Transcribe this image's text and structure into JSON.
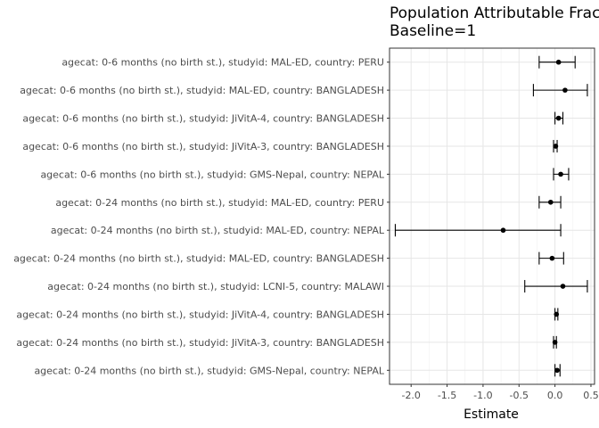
{
  "chart_data": {
    "type": "forest",
    "title": "Population Attributable Fraction",
    "subtitle": "Baseline=1",
    "xlabel": "Estimate",
    "ylabel": "",
    "xlim": [
      -2.3,
      0.55
    ],
    "xticks": [
      -2.0,
      -1.5,
      -1.0,
      -0.5,
      0.0,
      0.5
    ],
    "xtick_labels": [
      "-2.0",
      "-1.5",
      "-1.0",
      "-0.5",
      "0.0",
      "0.5"
    ],
    "grid": true,
    "rows": [
      {
        "label": "agecat: 0-6 months (no birth st.), studyid: MAL-ED, country: PERU",
        "estimate": 0.05,
        "lower": -0.22,
        "upper": 0.28
      },
      {
        "label": "agecat: 0-6 months (no birth st.), studyid: MAL-ED, country: BANGLADESH",
        "estimate": 0.14,
        "lower": -0.3,
        "upper": 0.45
      },
      {
        "label": "agecat: 0-6 months (no birth st.), studyid: JiVitA-4, country: BANGLADESH",
        "estimate": 0.05,
        "lower": 0.0,
        "upper": 0.11
      },
      {
        "label": "agecat: 0-6 months (no birth st.), studyid: JiVitA-3, country: BANGLADESH",
        "estimate": 0.01,
        "lower": -0.02,
        "upper": 0.03
      },
      {
        "label": "agecat: 0-6 months (no birth st.), studyid: GMS-Nepal, country: NEPAL",
        "estimate": 0.08,
        "lower": -0.02,
        "upper": 0.19
      },
      {
        "label": "agecat: 0-24 months (no birth st.), studyid: MAL-ED, country: PERU",
        "estimate": -0.06,
        "lower": -0.22,
        "upper": 0.08
      },
      {
        "label": "agecat: 0-24 months (no birth st.), studyid: MAL-ED, country: NEPAL",
        "estimate": -0.72,
        "lower": -2.22,
        "upper": 0.08
      },
      {
        "label": "agecat: 0-24 months (no birth st.), studyid: MAL-ED, country: BANGLADESH",
        "estimate": -0.04,
        "lower": -0.22,
        "upper": 0.12
      },
      {
        "label": "agecat: 0-24 months (no birth st.), studyid: LCNI-5, country: MALAWI",
        "estimate": 0.11,
        "lower": -0.42,
        "upper": 0.45
      },
      {
        "label": "agecat: 0-24 months (no birth st.), studyid: JiVitA-4, country: BANGLADESH",
        "estimate": 0.02,
        "lower": 0.0,
        "upper": 0.04
      },
      {
        "label": "agecat: 0-24 months (no birth st.), studyid: JiVitA-3, country: BANGLADESH",
        "estimate": 0.0,
        "lower": -0.02,
        "upper": 0.02
      },
      {
        "label": "agecat: 0-24 months (no birth st.), studyid: GMS-Nepal, country: NEPAL",
        "estimate": 0.03,
        "lower": 0.0,
        "upper": 0.07
      }
    ]
  }
}
